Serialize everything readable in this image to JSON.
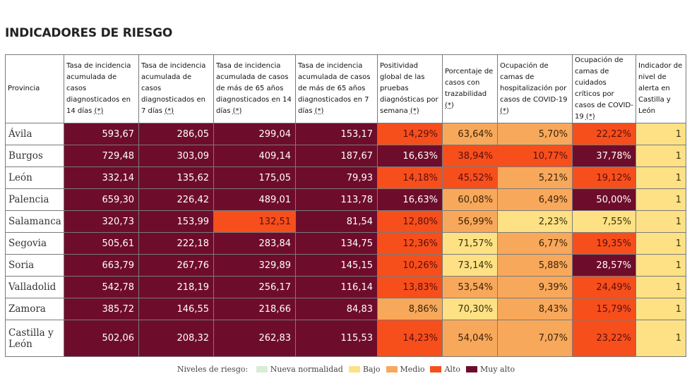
{
  "title": "INDICADORES DE RIESGO",
  "columns": [
    "Provincia",
    "Tasa de incidencia acumulada de casos diagnosticados en 14 días ",
    "Tasa de incidencia acumulada de casos diagnosticados en 7 días ",
    "Tasa de incidencia acumulada de casos de más de 65 años diagnosticados en 14 días ",
    "Tasa de incidencia acumulada de casos de más de 65 años diagnosticados en 7 días ",
    "Positividad global de las pruebas diagnósticas por semana ",
    "Porcentaje de casos con trazabilidad ",
    "Ocupación de camas de hospitalización por casos de COVID-19 ",
    "Ocupación de camas de cuidados críticos por casos de COVID-19 ",
    "Indicador de nivel de alerta en Castilla y León"
  ],
  "star": "(*)",
  "rows": [
    {
      "provincia": "Ávila",
      "values": [
        "593,67",
        "286,05",
        "299,04",
        "153,17",
        "14,29%",
        "63,64%",
        "5,70%",
        "22,22%",
        "1"
      ],
      "levels": [
        "muyalto",
        "muyalto",
        "muyalto",
        "muyalto",
        "alto",
        "medio",
        "medio",
        "alto",
        "bajo"
      ]
    },
    {
      "provincia": "Burgos",
      "values": [
        "729,48",
        "303,09",
        "409,14",
        "187,67",
        "16,63%",
        "38,94%",
        "10,77%",
        "37,78%",
        "1"
      ],
      "levels": [
        "muyalto",
        "muyalto",
        "muyalto",
        "muyalto",
        "muyalto",
        "alto",
        "alto",
        "muyalto",
        "bajo"
      ]
    },
    {
      "provincia": "León",
      "values": [
        "332,14",
        "135,62",
        "175,05",
        "79,93",
        "14,18%",
        "45,52%",
        "5,21%",
        "19,12%",
        "1"
      ],
      "levels": [
        "muyalto",
        "muyalto",
        "muyalto",
        "muyalto",
        "alto",
        "alto",
        "medio",
        "alto",
        "bajo"
      ]
    },
    {
      "provincia": "Palencia",
      "values": [
        "659,30",
        "226,42",
        "489,01",
        "113,78",
        "16,63%",
        "60,08%",
        "6,49%",
        "50,00%",
        "1"
      ],
      "levels": [
        "muyalto",
        "muyalto",
        "muyalto",
        "muyalto",
        "muyalto",
        "medio",
        "medio",
        "muyalto",
        "bajo"
      ]
    },
    {
      "provincia": "Salamanca",
      "values": [
        "320,73",
        "153,99",
        "132,51",
        "81,54",
        "12,80%",
        "56,99%",
        "2,23%",
        "7,55%",
        "1"
      ],
      "levels": [
        "muyalto",
        "muyalto",
        "alto",
        "muyalto",
        "alto",
        "medio",
        "bajo",
        "bajo",
        "bajo"
      ]
    },
    {
      "provincia": "Segovia",
      "values": [
        "505,61",
        "222,18",
        "283,84",
        "134,75",
        "12,36%",
        "71,57%",
        "6,77%",
        "19,35%",
        "1"
      ],
      "levels": [
        "muyalto",
        "muyalto",
        "muyalto",
        "muyalto",
        "alto",
        "bajo",
        "medio",
        "alto",
        "bajo"
      ]
    },
    {
      "provincia": "Soria",
      "values": [
        "663,79",
        "267,76",
        "329,89",
        "145,15",
        "10,26%",
        "73,14%",
        "5,88%",
        "28,57%",
        "1"
      ],
      "levels": [
        "muyalto",
        "muyalto",
        "muyalto",
        "muyalto",
        "alto",
        "bajo",
        "medio",
        "muyalto",
        "bajo"
      ]
    },
    {
      "provincia": "Valladolid",
      "values": [
        "542,78",
        "218,19",
        "256,17",
        "116,14",
        "13,83%",
        "53,54%",
        "9,39%",
        "24,49%",
        "1"
      ],
      "levels": [
        "muyalto",
        "muyalto",
        "muyalto",
        "muyalto",
        "alto",
        "medio",
        "medio",
        "alto",
        "bajo"
      ]
    },
    {
      "provincia": "Zamora",
      "values": [
        "385,72",
        "146,55",
        "218,66",
        "84,83",
        "8,86%",
        "70,30%",
        "8,43%",
        "15,79%",
        "1"
      ],
      "levels": [
        "muyalto",
        "muyalto",
        "muyalto",
        "muyalto",
        "medio",
        "bajo",
        "medio",
        "alto",
        "bajo"
      ]
    },
    {
      "provincia": "Castilla y León",
      "values": [
        "502,06",
        "208,32",
        "262,83",
        "115,53",
        "14,23%",
        "54,04%",
        "7,07%",
        "23,22%",
        "1"
      ],
      "levels": [
        "muyalto",
        "muyalto",
        "muyalto",
        "muyalto",
        "alto",
        "medio",
        "medio",
        "alto",
        "bajo"
      ]
    }
  ],
  "legend": {
    "label": "Niveles de riesgo:",
    "items": [
      {
        "key": "nueva",
        "label": "Nueva normalidad",
        "color": "#d8edd3"
      },
      {
        "key": "bajo",
        "label": "Bajo",
        "color": "#fde184"
      },
      {
        "key": "medio",
        "label": "Medio",
        "color": "#f8a85b"
      },
      {
        "key": "alto",
        "label": "Alto",
        "color": "#f64f1c"
      },
      {
        "key": "muyalto",
        "label": "Muy alto",
        "color": "#6e0d2b"
      }
    ]
  }
}
